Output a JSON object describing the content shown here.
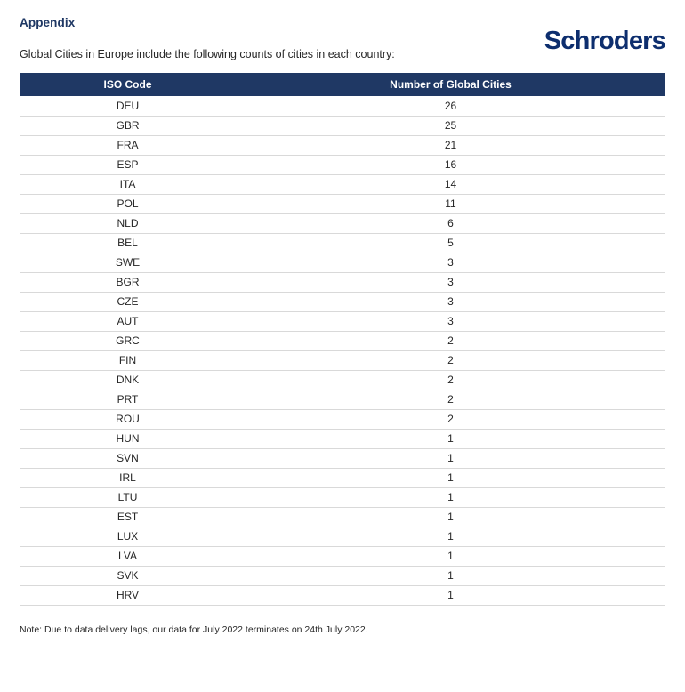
{
  "page": {
    "title": "Appendix",
    "brand": "Schroders",
    "subtitle": "Global Cities in Europe include the following counts of cities in each country:",
    "note": "Note: Due to data delivery lags, our data for July 2022 terminates on 24th July 2022."
  },
  "colors": {
    "header-bg": "#1f3864",
    "heading": "#1f3864",
    "logo": "#0d2e6e",
    "row-border": "#d9d9d9",
    "body-text": "#262626"
  },
  "table": {
    "columns": [
      "ISO Code",
      "Number of Global Cities"
    ],
    "rows": [
      {
        "iso": "DEU",
        "count": "26"
      },
      {
        "iso": "GBR",
        "count": "25"
      },
      {
        "iso": "FRA",
        "count": "21"
      },
      {
        "iso": "ESP",
        "count": "16"
      },
      {
        "iso": "ITA",
        "count": "14"
      },
      {
        "iso": "POL",
        "count": "11"
      },
      {
        "iso": "NLD",
        "count": "6"
      },
      {
        "iso": "BEL",
        "count": "5"
      },
      {
        "iso": "SWE",
        "count": "3"
      },
      {
        "iso": "BGR",
        "count": "3"
      },
      {
        "iso": "CZE",
        "count": "3"
      },
      {
        "iso": "AUT",
        "count": "3"
      },
      {
        "iso": "GRC",
        "count": "2"
      },
      {
        "iso": "FIN",
        "count": "2"
      },
      {
        "iso": "DNK",
        "count": "2"
      },
      {
        "iso": "PRT",
        "count": "2"
      },
      {
        "iso": "ROU",
        "count": "2"
      },
      {
        "iso": "HUN",
        "count": "1"
      },
      {
        "iso": "SVN",
        "count": "1"
      },
      {
        "iso": "IRL",
        "count": "1"
      },
      {
        "iso": "LTU",
        "count": "1"
      },
      {
        "iso": "EST",
        "count": "1"
      },
      {
        "iso": "LUX",
        "count": "1"
      },
      {
        "iso": "LVA",
        "count": "1"
      },
      {
        "iso": "SVK",
        "count": "1"
      },
      {
        "iso": "HRV",
        "count": "1"
      }
    ]
  }
}
